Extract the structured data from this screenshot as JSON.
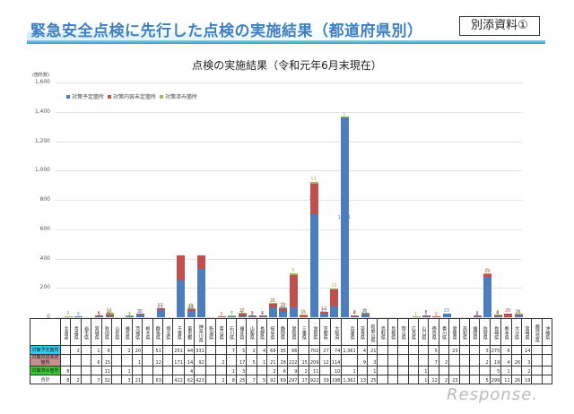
{
  "header": {
    "title": "緊急安全点検に先行した点検の実施結果（都道府県別）",
    "annex_label": "別添資料①"
  },
  "chart_data": {
    "type": "bar",
    "stacked": true,
    "title": "点検の実施結果（令和元年6月末現在）",
    "ylabel": "(箇所数)",
    "xlabel": "",
    "ylim": [
      0,
      1600
    ],
    "yticks": [
      "0",
      "200",
      "400",
      "600",
      "800",
      "1,000",
      "1,200",
      "1,400",
      "1,600"
    ],
    "grid": true,
    "legend_position": "top-left",
    "categories": [
      "北海道",
      "青森県",
      "岩手県",
      "宮城県",
      "秋田県",
      "山形県",
      "福島県",
      "茨城県",
      "栃木県",
      "群馬県",
      "埼玉県",
      "千葉県",
      "東京都",
      "神奈川県",
      "新潟県",
      "富山県",
      "石川県",
      "福井県",
      "山梨県",
      "長野県",
      "岐阜県",
      "静岡県",
      "愛知県",
      "三重県",
      "滋賀県",
      "京都府",
      "大阪府",
      "兵庫県",
      "奈良県",
      "和歌山県",
      "鳥取県",
      "島根県",
      "岡山県",
      "広島県",
      "山口県",
      "徳島県",
      "香川県",
      "愛媛県",
      "高知県",
      "福岡県",
      "佐賀県",
      "長崎県",
      "熊本県",
      "大分県",
      "宮崎県",
      "鹿児島県",
      "沖縄県"
    ],
    "series": [
      {
        "name": "対策予定箇所",
        "color": "#4a7ebf",
        "values": [
          0,
          2,
          0,
          1,
          6,
          0,
          2,
          20,
          0,
          51,
          0,
          251,
          44,
          331,
          0,
          0,
          7,
          5,
          2,
          4,
          69,
          35,
          66,
          0,
          702,
          27,
          74,
          1361,
          4,
          21,
          0,
          0,
          0,
          0,
          0,
          5,
          0,
          23,
          0,
          0,
          3,
          275,
          6,
          0,
          14,
          0,
          0
        ]
      },
      {
        "name": "対策内容未定箇所",
        "color": "#c0504d",
        "values": [
          0,
          0,
          0,
          6,
          15,
          0,
          0,
          1,
          0,
          12,
          0,
          171,
          14,
          92,
          0,
          2,
          0,
          17,
          5,
          1,
          21,
          28,
          222,
          15,
          209,
          12,
          114,
          0,
          9,
          3,
          0,
          0,
          0,
          0,
          0,
          7,
          2,
          0,
          0,
          0,
          2,
          19,
          4,
          26,
          3,
          0,
          0
        ]
      },
      {
        "name": "対策済み箇所",
        "color": "#9bbb59",
        "values": [
          8,
          0,
          0,
          0,
          11,
          0,
          1,
          0,
          0,
          0,
          0,
          0,
          4,
          0,
          0,
          0,
          1,
          3,
          0,
          0,
          2,
          6,
          9,
          2,
          11,
          0,
          10,
          1,
          0,
          1,
          0,
          0,
          0,
          0,
          1,
          0,
          0,
          0,
          0,
          0,
          0,
          5,
          1,
          0,
          2,
          0,
          0
        ]
      }
    ],
    "totals": [
      8,
      2,
      0,
      7,
      32,
      0,
      3,
      21,
      0,
      63,
      0,
      422,
      62,
      423,
      0,
      2,
      8,
      25,
      7,
      5,
      92,
      69,
      297,
      17,
      922,
      39,
      198,
      1362,
      13,
      25,
      0,
      0,
      0,
      0,
      1,
      12,
      2,
      23,
      0,
      0,
      5,
      299,
      11,
      26,
      19,
      0,
      0
    ]
  },
  "table": {
    "row_headers": [
      "対策予定箇所",
      "対策内容未定箇所",
      "対策済み箇所",
      "合計"
    ]
  },
  "watermark": "Response."
}
